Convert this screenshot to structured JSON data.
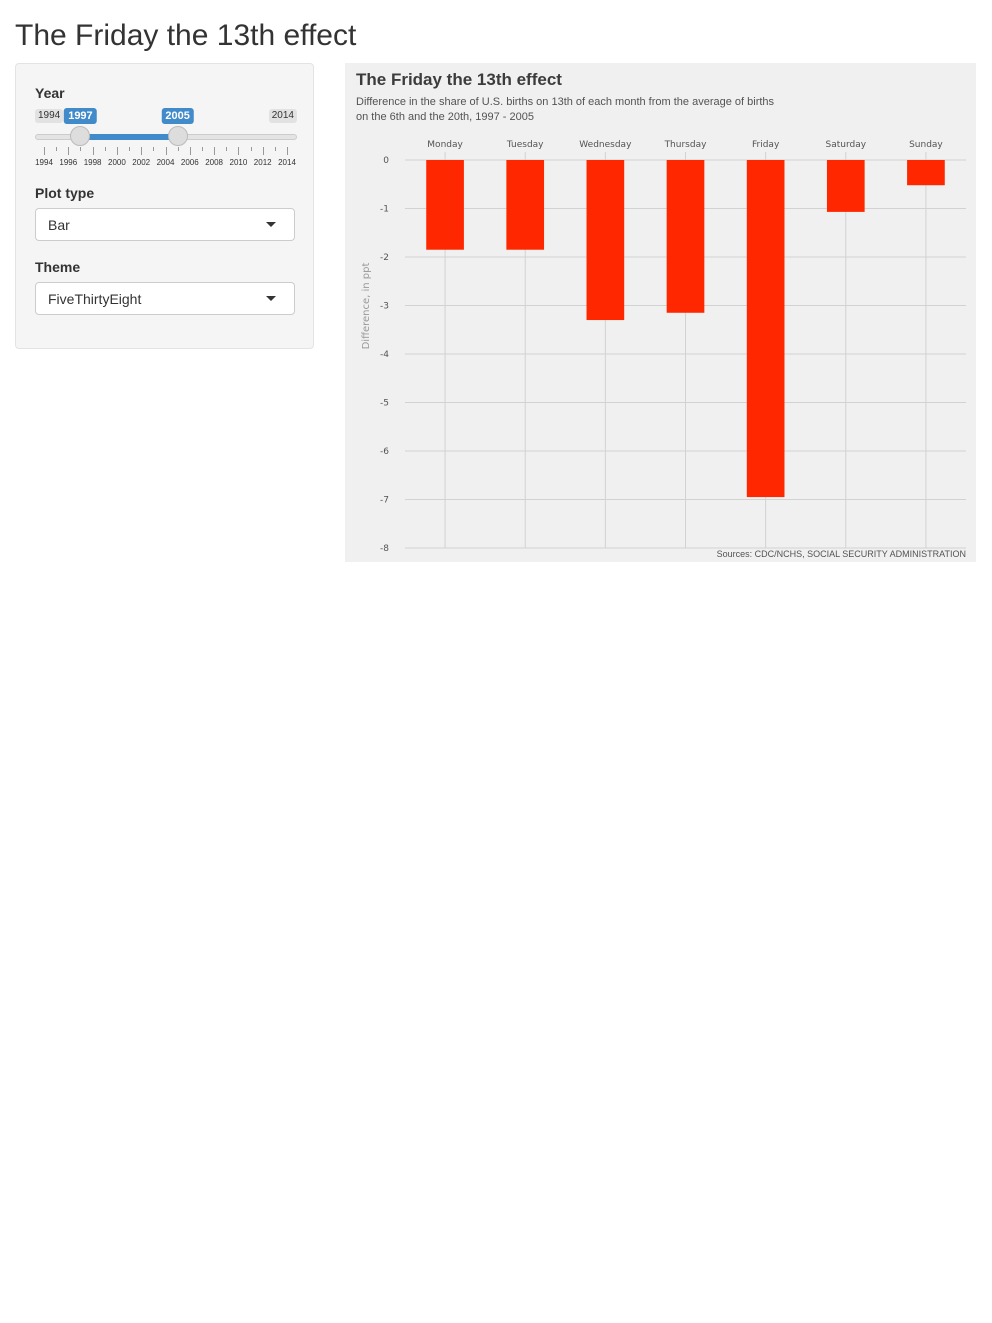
{
  "page": {
    "title": "The Friday the 13th effect"
  },
  "sidebar": {
    "year": {
      "label": "Year",
      "min": 1994,
      "max": 2014,
      "from": 1997,
      "to": 2005,
      "min_label": "1994",
      "max_label": "2014",
      "from_label": "1997",
      "to_label": "2005",
      "tick_labels": [
        "1994",
        "1996",
        "1998",
        "2000",
        "2002",
        "2004",
        "2006",
        "2008",
        "2010",
        "2012",
        "2014"
      ]
    },
    "plot_type": {
      "label": "Plot type",
      "value": "Bar"
    },
    "theme": {
      "label": "Theme",
      "value": "FiveThirtyEight"
    }
  },
  "colors": {
    "slider_accent": "#428bca",
    "bar": "#ff2700",
    "plot_background": "#f0f0f0",
    "grid": "#d2d2d2"
  },
  "chart_data": {
    "type": "bar",
    "title": "The Friday the 13th effect",
    "subtitle_line1": "Difference in the share of U.S. births on 13th of each month from the average of births",
    "subtitle_line2": "on the 6th and the 20th, 1997 - 2005",
    "caption": "Sources: CDC/NCHS, SOCIAL SECURITY ADMINISTRATION",
    "ylabel": "Difference, in ppt",
    "x_axis_position": "top",
    "categories": [
      "Monday",
      "Tuesday",
      "Wednesday",
      "Thursday",
      "Friday",
      "Saturday",
      "Sunday"
    ],
    "values": [
      -1.85,
      -1.85,
      -3.3,
      -3.15,
      -6.95,
      -1.07,
      -0.52
    ],
    "ylim": [
      -8,
      0
    ],
    "yticks": [
      0,
      -1,
      -2,
      -3,
      -4,
      -5,
      -6,
      -7,
      -8
    ],
    "grid": true
  }
}
